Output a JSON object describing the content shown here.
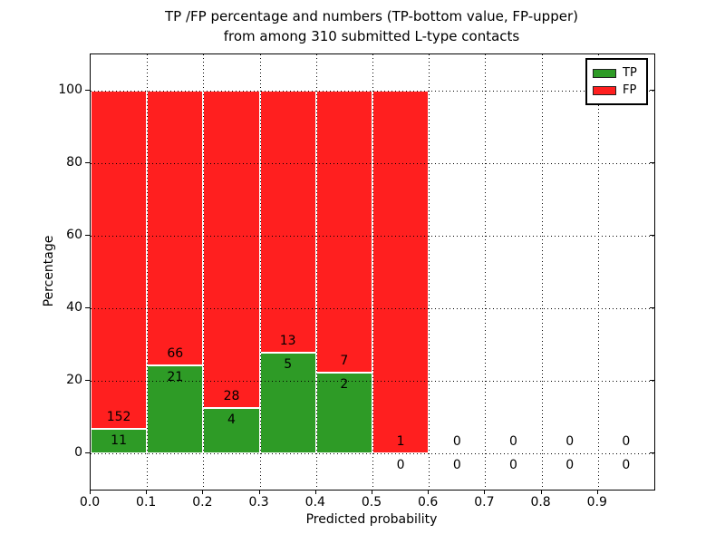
{
  "title": {
    "line1": "TP /FP percentage and numbers (TP-bottom value, FP-upper)",
    "line2": "from among 310 submitted L-type contacts"
  },
  "axes": {
    "xlabel": "Predicted probability",
    "ylabel": "Percentage",
    "x_tick_labels": [
      "0.0",
      "0.1",
      "0.2",
      "0.3",
      "0.4",
      "0.5",
      "0.6",
      "0.7",
      "0.8",
      "0.9"
    ],
    "y_tick_labels": [
      "0",
      "20",
      "40",
      "60",
      "80",
      "100"
    ],
    "y_tick_values": [
      0,
      20,
      40,
      60,
      80,
      100
    ],
    "xlim": [
      0.0,
      1.0
    ],
    "ylim": [
      -10,
      110
    ],
    "grid_style": "dotted"
  },
  "legend": {
    "position": "upper right",
    "items": [
      {
        "label": "TP",
        "color": "#2e9b26"
      },
      {
        "label": "FP",
        "color": "#ff1f1f"
      }
    ]
  },
  "chart_data": {
    "type": "bar",
    "stacked": true,
    "total_contacts": 310,
    "bin_width": 0.1,
    "note": "green TP% bottom segment, red FP% top segment, segments sum to 100% per non-empty bin; labels show raw counts (FP above boundary, TP below)",
    "bins": [
      {
        "x_start": 0.0,
        "x_end": 0.1,
        "tp": 11,
        "fp": 152,
        "tp_pct": 6.75,
        "fp_pct": 93.25
      },
      {
        "x_start": 0.1,
        "x_end": 0.2,
        "tp": 21,
        "fp": 66,
        "tp_pct": 24.14,
        "fp_pct": 75.86
      },
      {
        "x_start": 0.2,
        "x_end": 0.3,
        "tp": 4,
        "fp": 28,
        "tp_pct": 12.5,
        "fp_pct": 87.5
      },
      {
        "x_start": 0.3,
        "x_end": 0.4,
        "tp": 5,
        "fp": 13,
        "tp_pct": 27.78,
        "fp_pct": 72.22
      },
      {
        "x_start": 0.4,
        "x_end": 0.5,
        "tp": 2,
        "fp": 7,
        "tp_pct": 22.22,
        "fp_pct": 77.78
      },
      {
        "x_start": 0.5,
        "x_end": 0.6,
        "tp": 0,
        "fp": 1,
        "tp_pct": 0,
        "fp_pct": 100
      },
      {
        "x_start": 0.6,
        "x_end": 0.7,
        "tp": 0,
        "fp": 0,
        "tp_pct": 0,
        "fp_pct": 0
      },
      {
        "x_start": 0.7,
        "x_end": 0.8,
        "tp": 0,
        "fp": 0,
        "tp_pct": 0,
        "fp_pct": 0
      },
      {
        "x_start": 0.8,
        "x_end": 0.9,
        "tp": 0,
        "fp": 0,
        "tp_pct": 0,
        "fp_pct": 0
      },
      {
        "x_start": 0.9,
        "x_end": 1.0,
        "tp": 0,
        "fp": 0,
        "tp_pct": 0,
        "fp_pct": 0
      }
    ]
  },
  "colors": {
    "tp": "#2e9b26",
    "fp": "#ff1f1f",
    "grid": "#000000",
    "bar_edge": "#ffffff",
    "axes_border": "#000000"
  }
}
